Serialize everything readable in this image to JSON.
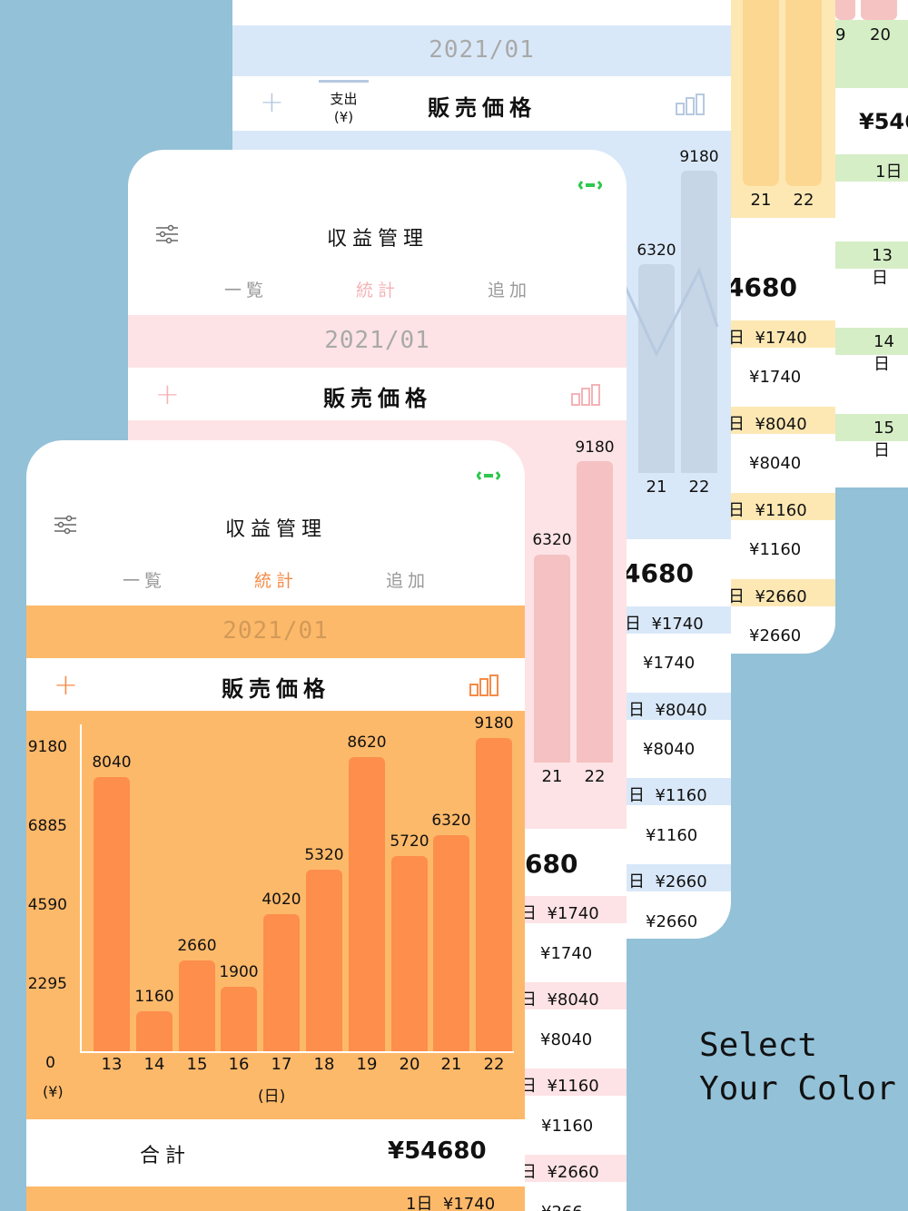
{
  "app": {
    "title": "収益管理"
  },
  "tabs": {
    "list": "一覧",
    "stats": "統計",
    "add": "追加"
  },
  "month": "2021/01",
  "metric": "販売価格",
  "expense_tab": {
    "line1": "支出",
    "line2": "(¥)"
  },
  "plus_icon": "+",
  "colors": {
    "orange_bg": "#fdb96a",
    "orange_bar": "#fd8e4b",
    "orange_accent": "#f58b47",
    "pink_bg": "#fde3e5",
    "pink_bar": "#f5c1c2",
    "blue_bg": "#d9e8f8",
    "blue_bar": "#c6d6e6",
    "yellow_bg": "#fde8b4",
    "green_bg": "#d6eec6"
  },
  "chart_data": {
    "type": "bar",
    "categories": [
      "13",
      "14",
      "15",
      "16",
      "17",
      "18",
      "19",
      "20",
      "21",
      "22"
    ],
    "values": [
      8040,
      1160,
      2660,
      1900,
      4020,
      5320,
      8620,
      5720,
      6320,
      9180
    ],
    "yticks": [
      "9180",
      "6885",
      "4590",
      "2295",
      "0"
    ],
    "ylim": [
      0,
      9180
    ],
    "ylabel": "(¥)",
    "xlabel": "(日)"
  },
  "total": {
    "label": "合計",
    "value": "¥54680",
    "value_partial": "680",
    "value_partial2": "4680",
    "value_partial3": "¥546"
  },
  "entries": [
    {
      "day": "1日",
      "amount": "¥1740"
    },
    {
      "day": "日",
      "amount": "¥1740"
    },
    {
      "day": "日",
      "amount": "¥8040"
    },
    {
      "day": "日",
      "amount": "¥1160"
    },
    {
      "day": "日",
      "amount": "¥2660"
    }
  ],
  "entries_plain": [
    "¥1740",
    "¥8040",
    "¥1160",
    "¥2660",
    "¥266"
  ],
  "back_card_days": {
    "top": [
      "9",
      "20"
    ],
    "left": "1日",
    "rows": [
      "13日",
      "14日",
      "15日"
    ],
    "bars": [
      "21",
      "22"
    ]
  },
  "tagline": {
    "line1": "Select",
    "line2": "Your Color"
  }
}
